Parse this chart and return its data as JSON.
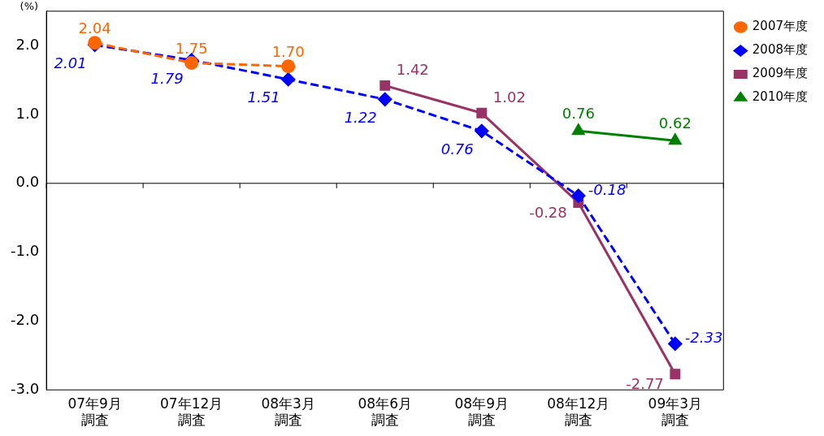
{
  "chart_data": {
    "type": "line",
    "ylabel": "(%)",
    "categories": [
      "07年9月調査",
      "07年12月調査",
      "08年3月調査",
      "08年6月調査",
      "08年9月調査",
      "08年12月調査",
      "09年3月調査"
    ],
    "series": [
      {
        "name": "2007年度",
        "color": "#ff6600",
        "marker": "circle",
        "line_style": "dashed",
        "values": [
          2.04,
          1.75,
          1.7,
          null,
          null,
          null,
          null
        ],
        "value_labels": [
          "2.04",
          "1.75",
          "1.70",
          null,
          null,
          null,
          null
        ]
      },
      {
        "name": "2008年度",
        "color": "#0000ff",
        "marker": "diamond",
        "line_style": "dashed",
        "values": [
          2.01,
          1.79,
          1.51,
          1.22,
          0.76,
          -0.18,
          -2.33
        ],
        "value_labels": [
          "2.01",
          "1.79",
          "1.51",
          "1.22",
          "0.76",
          "-0.18",
          "-2.33"
        ]
      },
      {
        "name": "2009年度",
        "color": "#993366",
        "marker": "square",
        "line_style": "solid",
        "values": [
          null,
          null,
          null,
          1.42,
          1.02,
          -0.28,
          -2.77
        ],
        "value_labels": [
          null,
          null,
          null,
          "1.42",
          "1.02",
          "-0.28",
          "-2.77"
        ]
      },
      {
        "name": "2010年度",
        "color": "#008000",
        "marker": "triangle",
        "line_style": "solid",
        "values": [
          null,
          null,
          null,
          null,
          null,
          0.76,
          0.62
        ],
        "value_labels": [
          null,
          null,
          null,
          null,
          null,
          "0.76",
          "0.62"
        ]
      }
    ],
    "ylim": [
      -3,
      2.5
    ],
    "yticks": [
      {
        "value": -3,
        "label": "-3.0"
      },
      {
        "value": -2,
        "label": "-2.0"
      },
      {
        "value": -1,
        "label": "-1.0"
      },
      {
        "value": 0,
        "label": "0.0"
      },
      {
        "value": 1,
        "label": "1.0"
      },
      {
        "value": 2,
        "label": "2.0"
      }
    ],
    "ref_lines": [
      {
        "axis": "y",
        "value": 0,
        "color": "#000000"
      }
    ],
    "grid": false,
    "legend": "right"
  }
}
